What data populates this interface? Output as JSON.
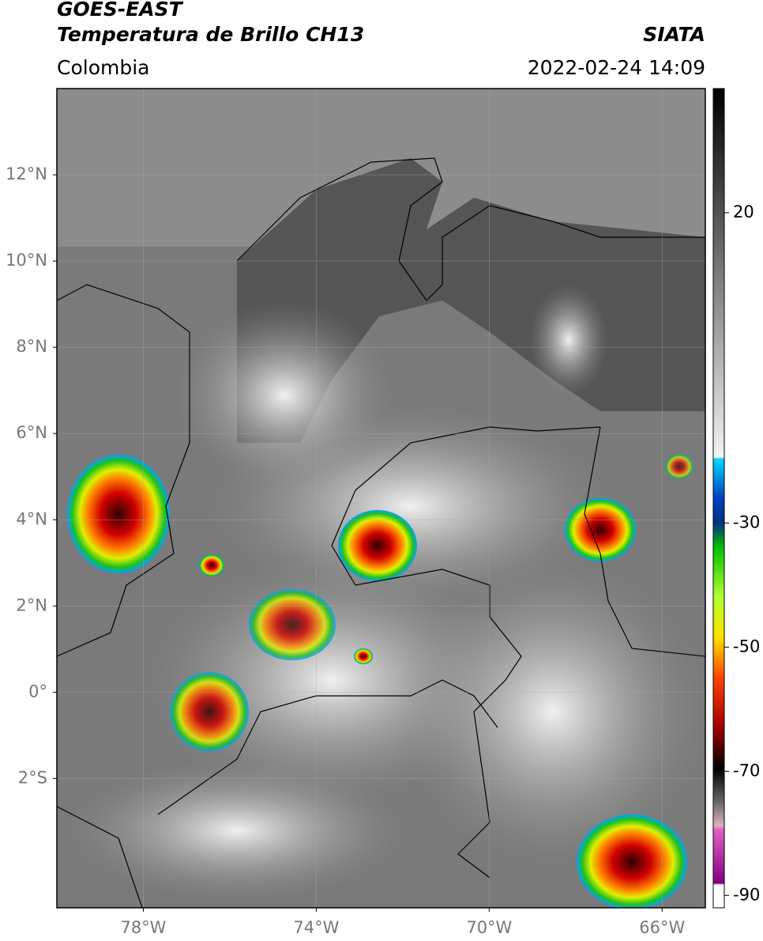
{
  "header": {
    "satellite": "GOES-EAST",
    "product": "Temperatura de Brillo CH13",
    "region": "Colombia",
    "source": "SIATA",
    "datetime": "2022-02-24 14:09"
  },
  "map": {
    "lonlim": [
      -80,
      -65
    ],
    "latlim": [
      -5,
      14
    ],
    "lat_ticks": [
      {
        "value": 12,
        "label": "12°N"
      },
      {
        "value": 10,
        "label": "10°N"
      },
      {
        "value": 8,
        "label": "8°N"
      },
      {
        "value": 6,
        "label": "6°N"
      },
      {
        "value": 4,
        "label": "4°N"
      },
      {
        "value": 2,
        "label": "2°N"
      },
      {
        "value": 0,
        "label": "0°"
      },
      {
        "value": -2,
        "label": "2°S"
      }
    ],
    "lon_ticks": [
      {
        "value": -78,
        "label": "78°W"
      },
      {
        "value": -74,
        "label": "74°W"
      },
      {
        "value": -70,
        "label": "70°W"
      },
      {
        "value": -66,
        "label": "66°W"
      }
    ],
    "grid": true
  },
  "colorbar": {
    "lim": [
      -92,
      40
    ],
    "ticks": [
      20,
      -30,
      -50,
      -70,
      -90
    ]
  }
}
